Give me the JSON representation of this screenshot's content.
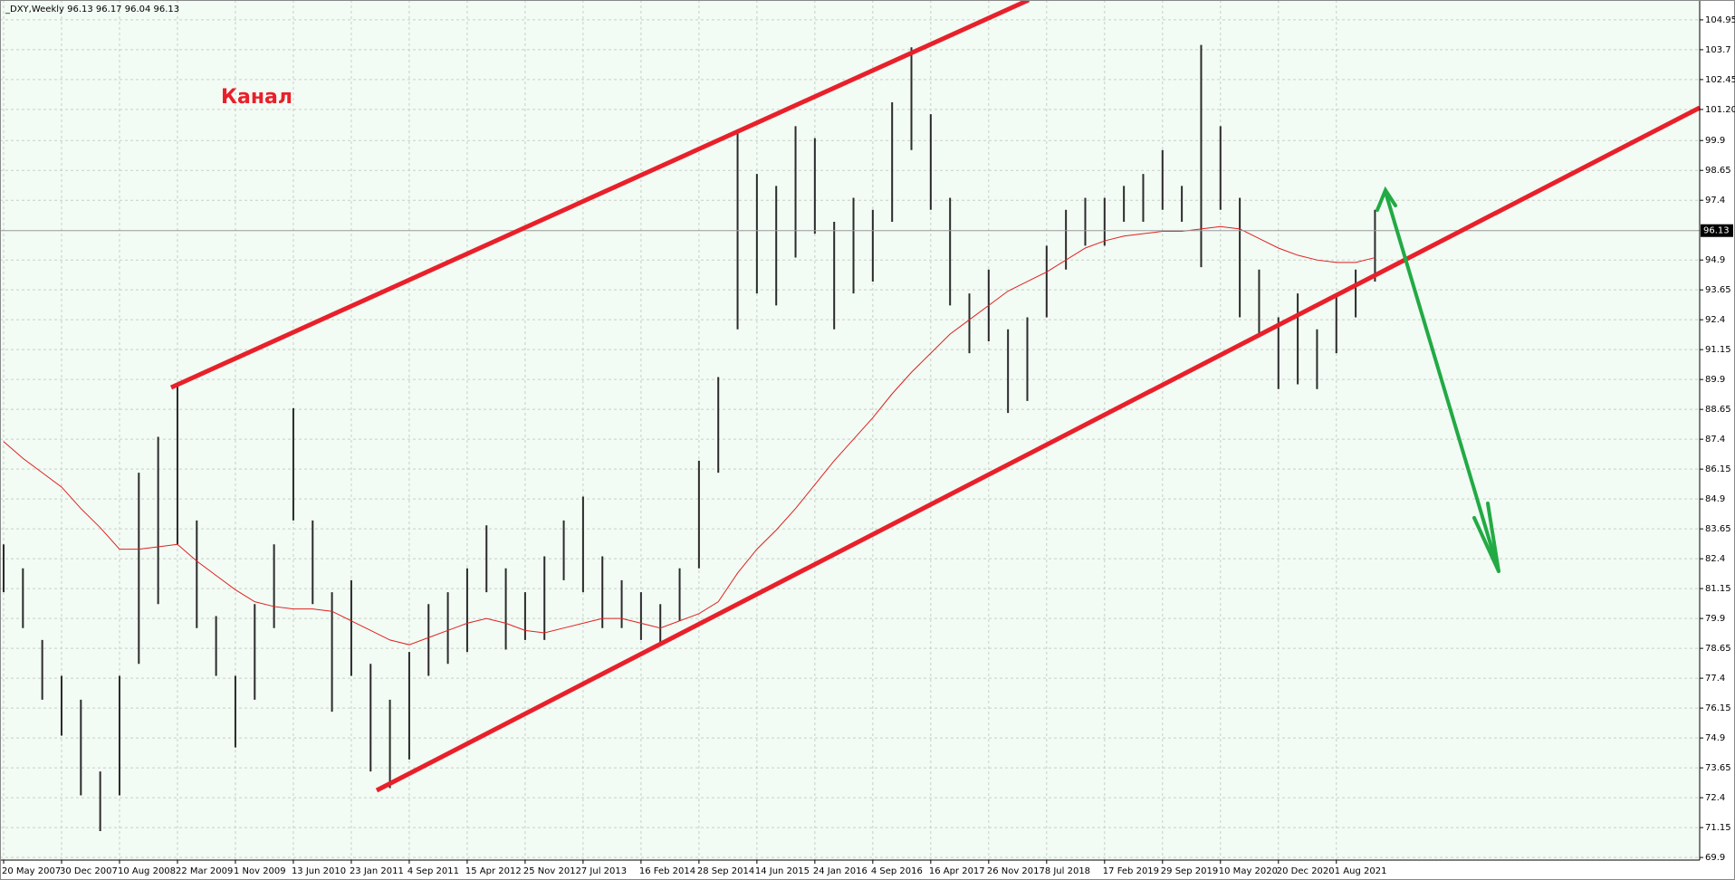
{
  "chart_data": {
    "type": "ohlc",
    "header": "_DXY,Weekly  96.13 96.17 96.04 96.13",
    "annotation": "Канал",
    "categories": [
      "20 May 2007",
      null,
      null,
      "30 Dec 2007",
      null,
      null,
      "10 Aug 2008",
      null,
      null,
      "22 Mar 2009",
      null,
      null,
      "1 Nov 2009",
      null,
      null,
      "13 Jun 2010",
      null,
      null,
      "23 Jan 2011",
      null,
      null,
      "4 Sep 2011",
      null,
      null,
      "15 Apr 2012",
      null,
      null,
      "25 Nov 2012",
      null,
      null,
      "7 Jul 2013",
      null,
      null,
      "16 Feb 2014",
      null,
      null,
      "28 Sep 2014",
      null,
      null,
      "14 Jun 2015",
      null,
      null,
      "24 Jan 2016",
      null,
      null,
      "4 Sep 2016",
      null,
      null,
      "16 Apr 2017",
      null,
      null,
      "26 Nov 2017",
      null,
      null,
      "8 Jul 2018",
      null,
      null,
      "17 Feb 2019",
      null,
      null,
      "29 Sep 2019",
      null,
      null,
      "10 May 2020",
      null,
      null,
      "20 Dec 2020",
      null,
      null,
      "1 Aug 2021",
      null,
      null
    ],
    "high": [
      83.0,
      82.0,
      79.0,
      77.5,
      76.5,
      73.5,
      77.5,
      86.0,
      87.5,
      89.6,
      84.0,
      80.0,
      77.5,
      80.5,
      83.0,
      88.7,
      84.0,
      81.0,
      81.5,
      78.0,
      76.5,
      78.5,
      80.5,
      81.0,
      82.0,
      83.8,
      82.0,
      81.0,
      82.5,
      84.0,
      85.0,
      82.5,
      81.5,
      81.0,
      80.5,
      82.0,
      86.5,
      90.0,
      100.3,
      98.5,
      98.0,
      100.5,
      100.0,
      96.5,
      97.5,
      97.0,
      101.5,
      103.8,
      101.0,
      97.5,
      93.5,
      94.5,
      92.0,
      92.5,
      95.5,
      97.0,
      97.5,
      97.5,
      98.0,
      98.5,
      99.5,
      98.0,
      103.9,
      100.5,
      97.5,
      94.5,
      92.5,
      93.5,
      92.0,
      93.5,
      94.5,
      97.0
    ],
    "low": [
      81.0,
      79.5,
      76.5,
      75.0,
      72.5,
      71.0,
      72.5,
      78.0,
      80.5,
      83.0,
      79.5,
      77.5,
      74.5,
      76.5,
      79.5,
      84.0,
      80.5,
      76.0,
      77.5,
      73.5,
      72.8,
      74.0,
      77.5,
      78.0,
      78.5,
      81.0,
      78.6,
      79.0,
      79.0,
      81.5,
      81.0,
      79.5,
      79.5,
      79.0,
      78.9,
      79.8,
      82.0,
      86.0,
      92.0,
      93.5,
      93.0,
      95.0,
      96.0,
      92.0,
      93.5,
      94.0,
      96.5,
      99.5,
      97.0,
      93.0,
      91.0,
      91.5,
      88.5,
      89.0,
      92.5,
      94.5,
      95.5,
      95.5,
      96.5,
      96.5,
      97.0,
      96.5,
      94.6,
      97.0,
      92.5,
      91.8,
      89.5,
      89.7,
      89.5,
      91.0,
      92.5,
      94.0
    ],
    "ma": [
      87.3,
      86.6,
      86.0,
      85.4,
      84.5,
      83.7,
      82.8,
      82.8,
      82.9,
      83.0,
      82.3,
      81.7,
      81.1,
      80.6,
      80.4,
      80.3,
      80.3,
      80.2,
      79.8,
      79.4,
      79.0,
      78.8,
      79.1,
      79.4,
      79.7,
      79.9,
      79.7,
      79.4,
      79.3,
      79.5,
      79.7,
      79.9,
      79.9,
      79.7,
      79.5,
      79.8,
      80.1,
      80.6,
      81.8,
      82.8,
      83.6,
      84.5,
      85.5,
      86.5,
      87.4,
      88.3,
      89.3,
      90.2,
      91.0,
      91.8,
      92.4,
      93.0,
      93.6,
      94.0,
      94.4,
      94.9,
      95.4,
      95.7,
      95.9,
      96.0,
      96.1,
      96.1,
      96.2,
      96.3,
      96.2,
      95.8,
      95.4,
      95.1,
      94.9,
      94.8,
      94.8,
      95.0
    ],
    "current_price": 96.13,
    "bar_color": "#2b2b2b",
    "ma_color": "#e02020",
    "ylim": [
      69.79,
      105.78
    ],
    "yticks": [
      69.9,
      71.15,
      72.4,
      73.65,
      74.9,
      76.15,
      77.4,
      78.65,
      79.9,
      81.15,
      82.4,
      83.65,
      84.9,
      86.15,
      87.4,
      88.65,
      89.9,
      91.15,
      92.4,
      93.65,
      94.9,
      97.4,
      98.65,
      99.9,
      {
        "value": 101.2,
        "label": "101.20"
      },
      102.45,
      103.7,
      104.95
    ],
    "grid": true
  }
}
